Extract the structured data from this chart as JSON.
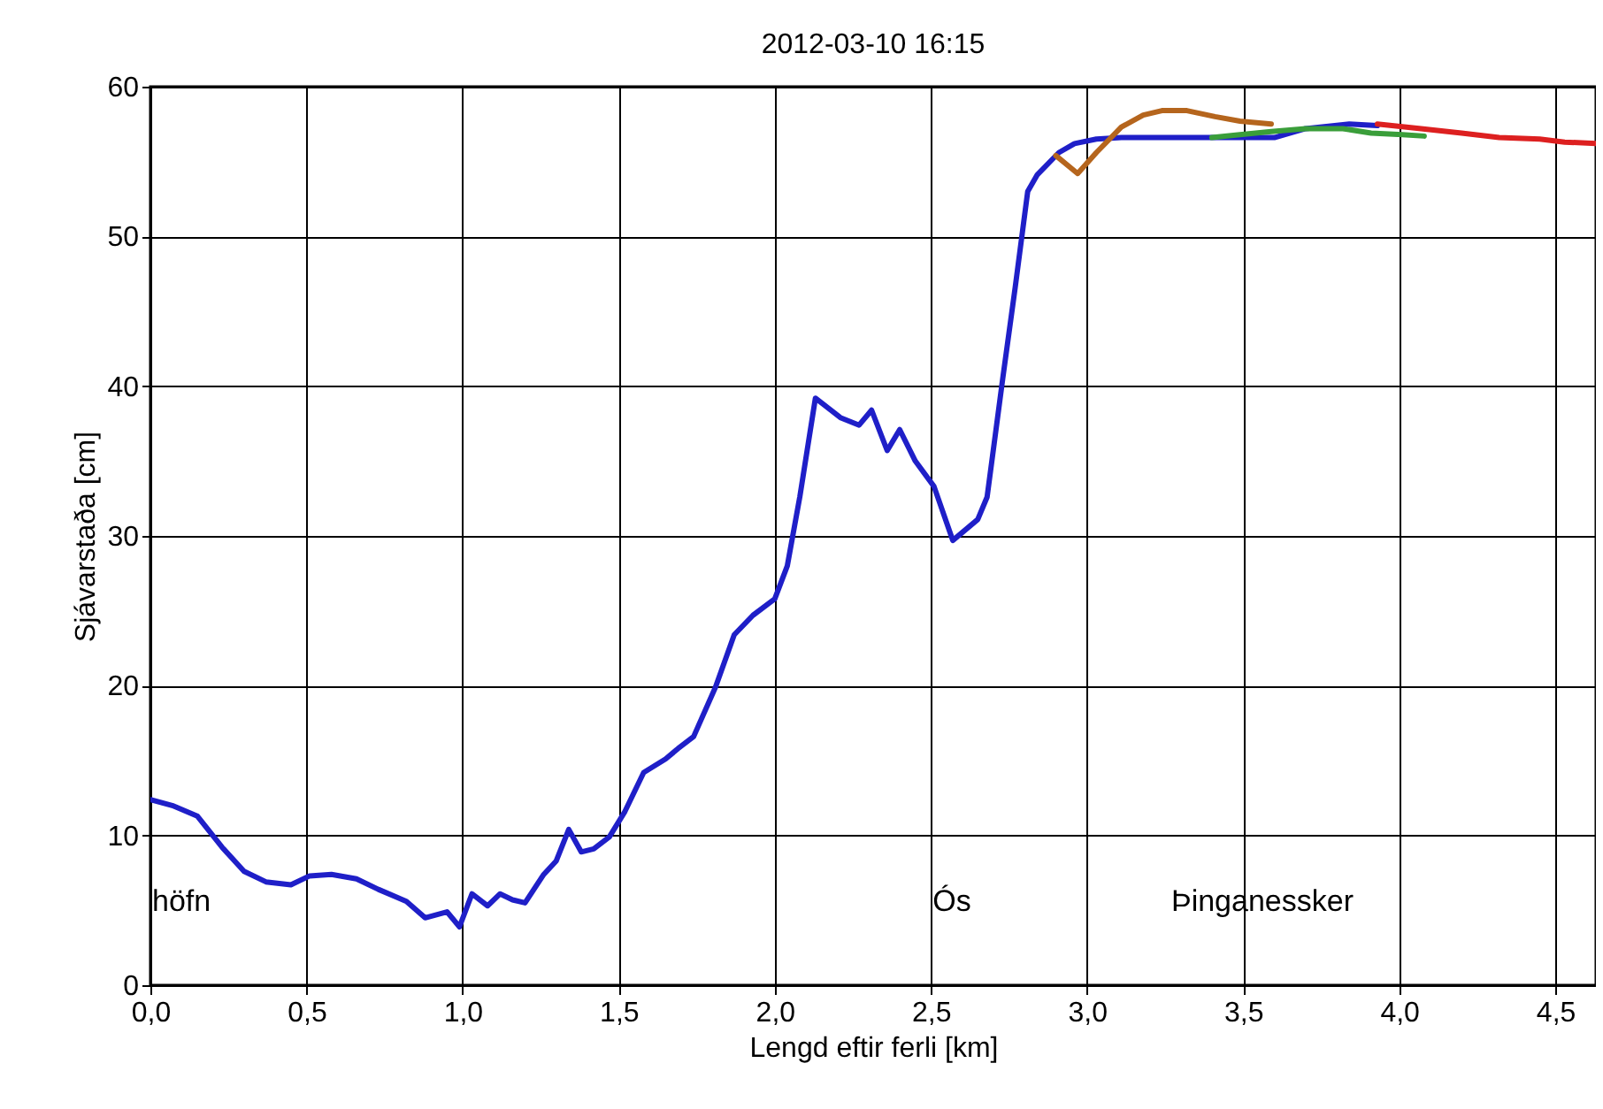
{
  "chart_data": {
    "type": "line",
    "title": "2012-03-10 16:15",
    "xlabel": "Lengd eftir ferli [km]",
    "ylabel": "Sjávarstaða [cm]",
    "xlim": [
      0,
      4.63
    ],
    "ylim": [
      0,
      60
    ],
    "xticks": [
      {
        "value": 0,
        "label": "0,0"
      },
      {
        "value": 0.5,
        "label": "0,5"
      },
      {
        "value": 1,
        "label": "1,0"
      },
      {
        "value": 1.5,
        "label": "1,5"
      },
      {
        "value": 2,
        "label": "2,0"
      },
      {
        "value": 2.5,
        "label": "2,5"
      },
      {
        "value": 3,
        "label": "3,0"
      },
      {
        "value": 3.5,
        "label": "3,5"
      },
      {
        "value": 4,
        "label": "4,0"
      },
      {
        "value": 4.5,
        "label": "4,5"
      }
    ],
    "yticks": [
      0,
      10,
      20,
      30,
      40,
      50,
      60
    ],
    "grid": true,
    "line_style": "solid",
    "series": [
      {
        "color": "#1f1fc8",
        "x": [
          0,
          0.07,
          0.15,
          0.23,
          0.3,
          0.37,
          0.45,
          0.51,
          0.58,
          0.66,
          0.73,
          0.82,
          0.88,
          0.95,
          0.99,
          1.03,
          1.08,
          1.12,
          1.16,
          1.2,
          1.26,
          1.3,
          1.34,
          1.38,
          1.42,
          1.47,
          1.52,
          1.58,
          1.65,
          1.69,
          1.74,
          1.81,
          1.87,
          1.93,
          2.0,
          2.04,
          2.08,
          2.13,
          2.21,
          2.27,
          2.31,
          2.36,
          2.4,
          2.45,
          2.51,
          2.57,
          2.65,
          2.68,
          2.73,
          2.77,
          2.81,
          2.84,
          2.91,
          2.96,
          3.03,
          3.11,
          3.39,
          3.6,
          3.7,
          3.84,
          3.93
        ],
        "values": [
          12.4,
          12.0,
          11.3,
          9.2,
          7.6,
          6.9,
          6.7,
          7.3,
          7.4,
          7.1,
          6.4,
          5.6,
          4.5,
          4.9,
          3.9,
          6.1,
          5.3,
          6.1,
          5.7,
          5.5,
          7.4,
          8.3,
          10.4,
          8.9,
          9.1,
          9.9,
          11.6,
          14.2,
          15.1,
          15.8,
          16.6,
          19.9,
          23.4,
          24.7,
          25.8,
          28.0,
          32.6,
          39.2,
          37.9,
          37.4,
          38.4,
          35.7,
          37.1,
          35.0,
          33.3,
          29.7,
          31.1,
          32.6,
          40.5,
          46.6,
          53.0,
          54.1,
          55.6,
          56.2,
          56.5,
          56.6,
          56.6,
          56.6,
          57.2,
          57.5,
          57.4
        ]
      },
      {
        "color": "#b5651d",
        "x": [
          2.9,
          2.97,
          3.03,
          3.11,
          3.18,
          3.24,
          3.32,
          3.41,
          3.49,
          3.59
        ],
        "values": [
          55.4,
          54.2,
          55.6,
          57.3,
          58.1,
          58.4,
          58.4,
          58.0,
          57.7,
          57.5
        ]
      },
      {
        "color": "#3a9e3a",
        "x": [
          3.4,
          3.49,
          3.59,
          3.7,
          3.82,
          3.91,
          4.01,
          4.08
        ],
        "values": [
          56.6,
          56.8,
          57.0,
          57.2,
          57.2,
          56.9,
          56.8,
          56.7
        ]
      },
      {
        "color": "#dd2020",
        "x": [
          3.93,
          4.07,
          4.2,
          4.32,
          4.45,
          4.53,
          4.63
        ],
        "values": [
          57.5,
          57.2,
          56.9,
          56.6,
          56.5,
          56.3,
          56.2
        ]
      }
    ],
    "annotations": [
      "höfn",
      "Ós",
      "Þinganessker"
    ]
  }
}
